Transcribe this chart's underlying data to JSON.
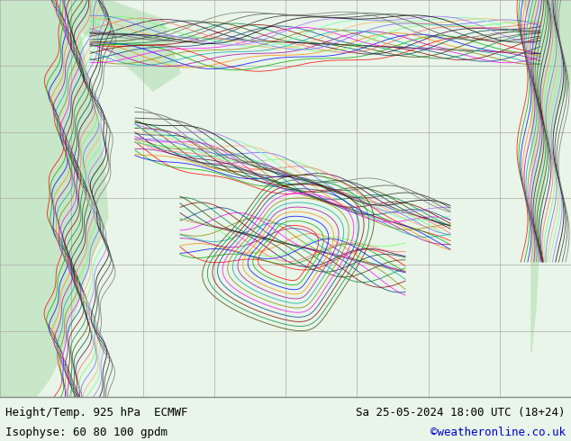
{
  "title_left": "Height/Temp. 925 hPa  ECMWF",
  "title_right": "Sa 25-05-2024 18:00 UTC (18+24)",
  "subtitle": "Isophyse: 60 80 100 gpdm",
  "credit": "©weatheronline.co.uk",
  "credit_color": "#0000cc",
  "background_color": "#e8f5e8",
  "ocean_color": "#f0f0f0",
  "land_color": "#c8e6c8",
  "grid_color": "#aaaaaa",
  "border_color": "#888888",
  "fig_width": 6.34,
  "fig_height": 4.9,
  "dpi": 100,
  "bottom_bar_color": "#ffffff",
  "bottom_bar_height": 0.1,
  "title_fontsize": 9,
  "subtitle_fontsize": 9,
  "credit_fontsize": 9
}
